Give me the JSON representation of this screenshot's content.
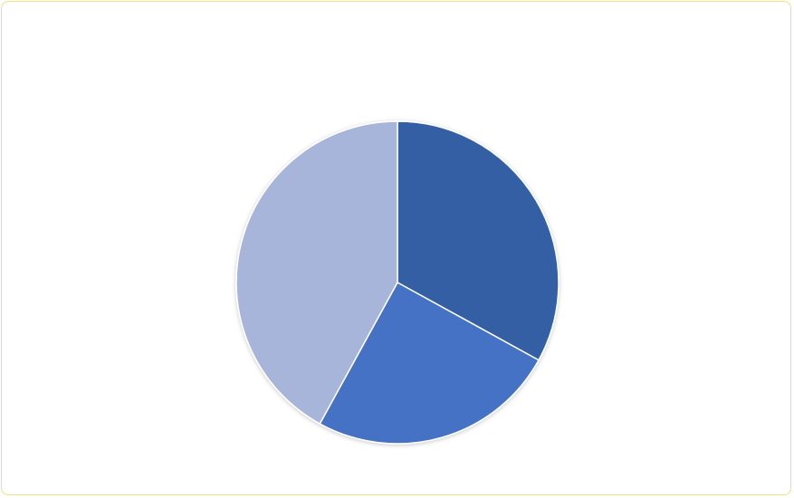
{
  "chart_data": {
    "type": "pie",
    "title": "",
    "categories": [
      "",
      "",
      ""
    ],
    "values": [
      33,
      25,
      42
    ],
    "colors": [
      "#355ea5",
      "#4472c4",
      "#a7b5db"
    ],
    "start_angle_deg": 0,
    "direction": "clockwise",
    "legend": "none",
    "data_labels": "none"
  }
}
